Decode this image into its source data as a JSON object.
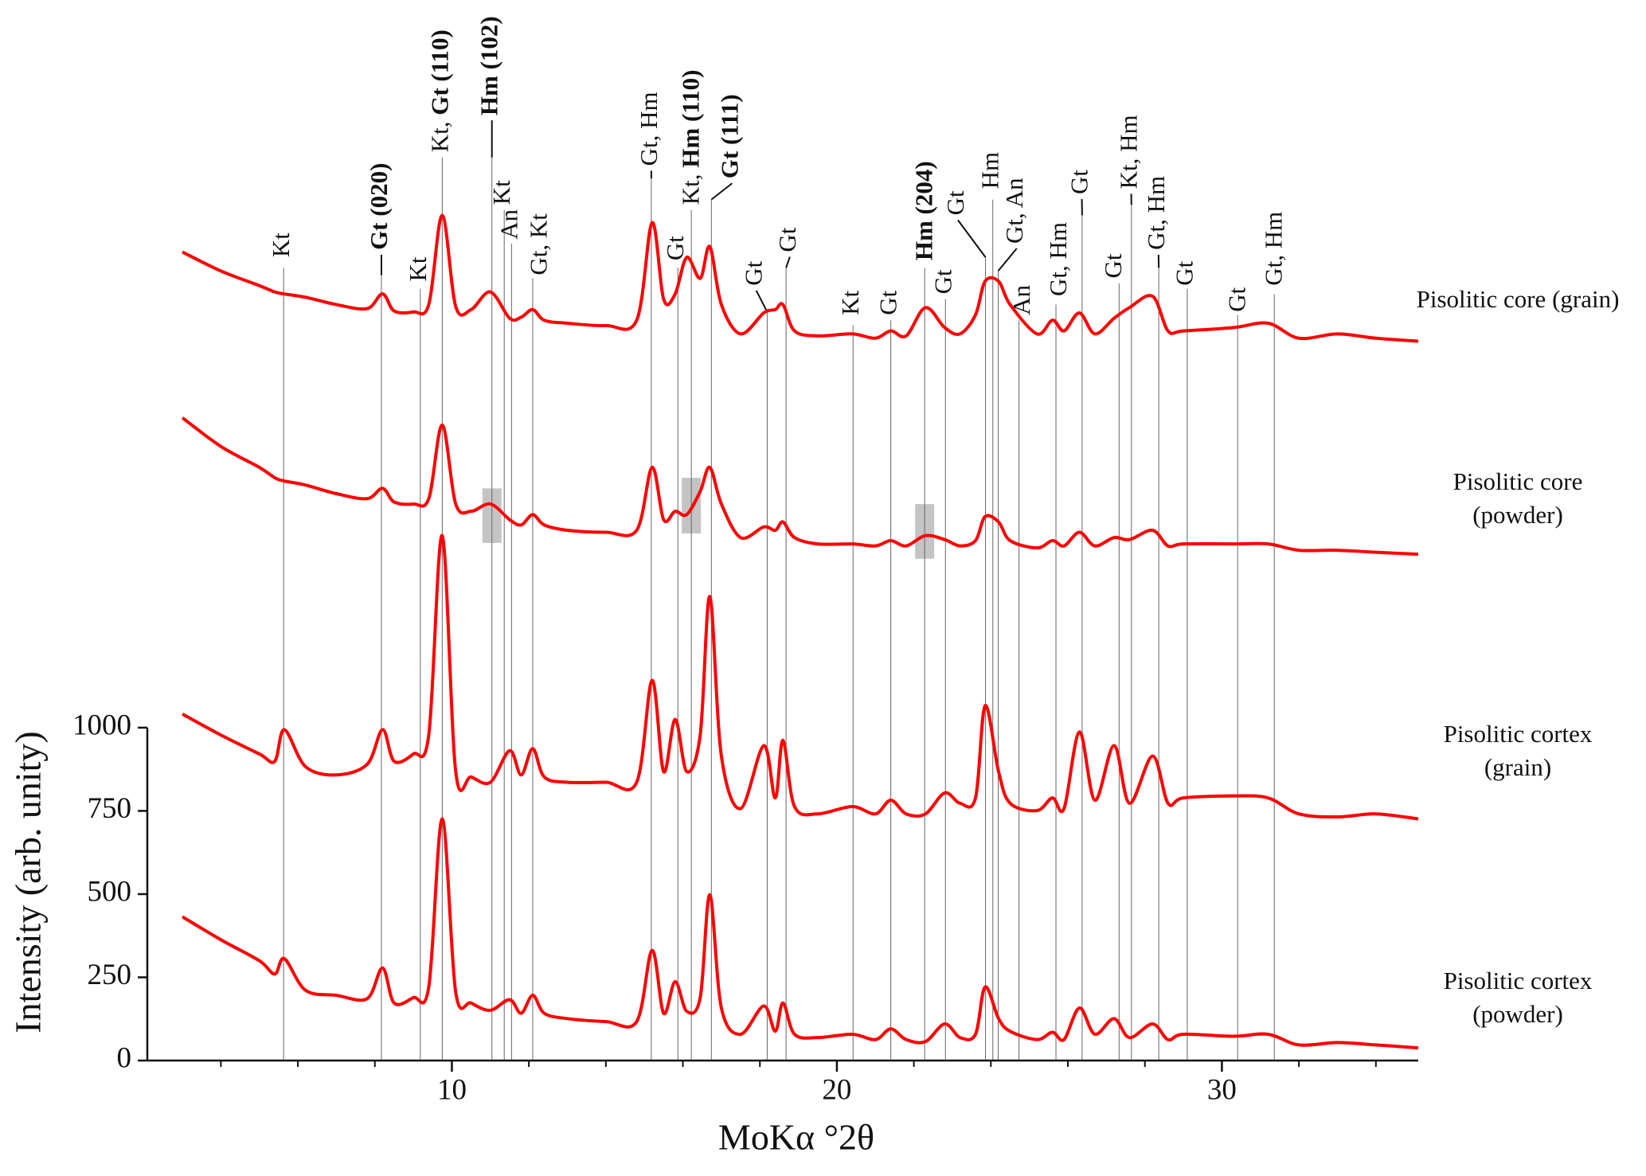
{
  "chart_data": {
    "type": "line",
    "xlabel": "MoKα °2θ",
    "ylabel": "Intensity (arb. unity)",
    "xlim": [
      3,
      35.1
    ],
    "xticks": [
      10,
      20,
      30
    ],
    "xminor_step": 2,
    "ylim": [
      0,
      3186
    ],
    "yticks": [
      0,
      250,
      500,
      750,
      1000
    ],
    "x": [
      3,
      4,
      5,
      5.4,
      5.65,
      6.2,
      7,
      7.8,
      8.2,
      8.5,
      9,
      9.4,
      9.75,
      10.1,
      10.5,
      11,
      11.5,
      11.8,
      12.1,
      12.4,
      13,
      14,
      14.8,
      15.2,
      15.5,
      15.8,
      16.1,
      16.45,
      16.7,
      17,
      17.5,
      18.1,
      18.4,
      18.6,
      18.9,
      19.5,
      20.4,
      21,
      21.4,
      21.8,
      22.3,
      22.8,
      23.2,
      23.6,
      23.85,
      24.2,
      24.5,
      25.2,
      25.6,
      25.9,
      26.3,
      26.7,
      27.2,
      27.6,
      28.2,
      28.6,
      29,
      30.3,
      31.2,
      32,
      33,
      34,
      35.1
    ],
    "series": [
      {
        "name": "Pisolitic core (grain)",
        "color": "#ff0000",
        "values": [
          2429,
          2372,
          2328,
          2309,
          2303,
          2293,
          2271,
          2259,
          2303,
          2252,
          2249,
          2271,
          2539,
          2265,
          2256,
          2309,
          2230,
          2233,
          2256,
          2224,
          2215,
          2208,
          2224,
          2517,
          2287,
          2303,
          2413,
          2350,
          2445,
          2271,
          2183,
          2246,
          2256,
          2271,
          2192,
          2177,
          2183,
          2170,
          2192,
          2177,
          2262,
          2202,
          2183,
          2240,
          2341,
          2341,
          2271,
          2183,
          2224,
          2192,
          2246,
          2183,
          2230,
          2262,
          2296,
          2192,
          2192,
          2202,
          2215,
          2170,
          2183,
          2170,
          2161
        ]
      },
      {
        "name": "Pisolitic core (powder)",
        "color": "#ff0000",
        "values": [
          1931,
          1845,
          1782,
          1751,
          1741,
          1729,
          1703,
          1688,
          1719,
          1678,
          1672,
          1688,
          1909,
          1672,
          1650,
          1672,
          1625,
          1609,
          1640,
          1609,
          1593,
          1587,
          1593,
          1782,
          1625,
          1650,
          1640,
          1710,
          1782,
          1672,
          1571,
          1603,
          1593,
          1618,
          1571,
          1552,
          1552,
          1546,
          1562,
          1546,
          1577,
          1565,
          1546,
          1562,
          1634,
          1618,
          1562,
          1540,
          1562,
          1546,
          1587,
          1546,
          1571,
          1565,
          1593,
          1546,
          1552,
          1552,
          1552,
          1533,
          1533,
          1527,
          1521
        ]
      },
      {
        "name": "Pisolitic cortex (grain)",
        "color": "#ff0000",
        "values": [
          1041,
          978,
          921,
          899,
          994,
          883,
          858,
          890,
          994,
          899,
          921,
          978,
          1577,
          868,
          852,
          836,
          931,
          858,
          937,
          852,
          836,
          836,
          836,
          1142,
          868,
          1025,
          868,
          978,
          1394,
          915,
          757,
          946,
          789,
          962,
          763,
          741,
          763,
          741,
          782,
          741,
          741,
          804,
          773,
          789,
          1066,
          868,
          773,
          751,
          789,
          757,
          987,
          782,
          946,
          773,
          915,
          773,
          789,
          795,
          789,
          741,
          732,
          741,
          726
        ]
      },
      {
        "name": "Pisolitic cortex (powder)",
        "color": "#ff0000",
        "values": [
          432,
          363,
          300,
          260,
          306,
          211,
          196,
          186,
          278,
          173,
          189,
          221,
          726,
          205,
          173,
          151,
          183,
          142,
          196,
          142,
          126,
          117,
          117,
          331,
          142,
          237,
          148,
          189,
          498,
          158,
          79,
          164,
          88,
          173,
          79,
          69,
          79,
          63,
          95,
          63,
          57,
          110,
          69,
          79,
          221,
          126,
          88,
          63,
          85,
          63,
          158,
          79,
          126,
          69,
          110,
          63,
          79,
          73,
          79,
          47,
          54,
          47,
          38
        ]
      }
    ],
    "reflections": [
      {
        "x": 5.63,
        "label": [
          {
            "text": "Kt"
          }
        ]
      },
      {
        "x": 8.17,
        "label": [
          {
            "text": "Gt (020)",
            "bold": true
          }
        ]
      },
      {
        "x": 9.18,
        "label": [
          {
            "text": "Kt"
          }
        ]
      },
      {
        "x": 9.75,
        "label": [
          {
            "text": "Kt, "
          },
          {
            "text": "Gt (110)",
            "bold": true
          }
        ]
      },
      {
        "x": 11.04,
        "label": [
          {
            "text": "Hm (102)",
            "bold": true
          }
        ]
      },
      {
        "x": 11.36,
        "label": [
          {
            "text": "Kt"
          }
        ]
      },
      {
        "x": 11.55,
        "label": [
          {
            "text": "An"
          }
        ]
      },
      {
        "x": 12.1,
        "label": [
          {
            "text": "Gt, Kt"
          }
        ]
      },
      {
        "x": 15.18,
        "label": [
          {
            "text": "Gt, Hm"
          }
        ]
      },
      {
        "x": 15.87,
        "label": [
          {
            "text": "Gt"
          }
        ]
      },
      {
        "x": 16.22,
        "label": [
          {
            "text": "Kt, "
          },
          {
            "text": "Hm (110)",
            "bold": true
          }
        ]
      },
      {
        "x": 16.74,
        "label": [
          {
            "text": "Gt (111)",
            "bold": true
          }
        ]
      },
      {
        "x": 18.19,
        "label": [
          {
            "text": "Gt"
          }
        ]
      },
      {
        "x": 18.68,
        "label": [
          {
            "text": "Gt"
          }
        ]
      },
      {
        "x": 20.42,
        "label": [
          {
            "text": "Kt"
          }
        ]
      },
      {
        "x": 21.4,
        "label": [
          {
            "text": "Gt"
          }
        ]
      },
      {
        "x": 22.28,
        "label": [
          {
            "text": "Hm (204)",
            "bold": true
          }
        ]
      },
      {
        "x": 22.82,
        "label": [
          {
            "text": "Gt"
          }
        ]
      },
      {
        "x": 23.86,
        "label": [
          {
            "text": "Gt"
          }
        ]
      },
      {
        "x": 24.05,
        "label": [
          {
            "text": "Hm"
          }
        ]
      },
      {
        "x": 24.19,
        "label": [
          {
            "text": "Gt, An"
          }
        ]
      },
      {
        "x": 24.73,
        "label": [
          {
            "text": "An"
          }
        ]
      },
      {
        "x": 25.69,
        "label": [
          {
            "text": "Gt, Hm"
          }
        ]
      },
      {
        "x": 26.37,
        "label": [
          {
            "text": "Gt"
          }
        ]
      },
      {
        "x": 27.33,
        "label": [
          {
            "text": "Gt"
          }
        ]
      },
      {
        "x": 27.65,
        "label": [
          {
            "text": "Kt, Hm"
          }
        ]
      },
      {
        "x": 28.36,
        "label": [
          {
            "text": "Gt, Hm"
          }
        ]
      },
      {
        "x": 29.1,
        "label": [
          {
            "text": "Gt"
          }
        ]
      },
      {
        "x": 30.41,
        "label": [
          {
            "text": "Gt"
          }
        ]
      },
      {
        "x": 31.36,
        "label": [
          {
            "text": "Gt, Hm"
          }
        ]
      }
    ]
  }
}
